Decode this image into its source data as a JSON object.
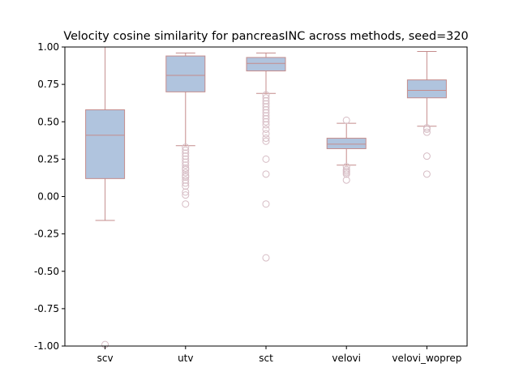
{
  "chart_data": {
    "type": "box",
    "title": "Velocity cosine similarity for pancreasINC across methods, seed=320",
    "xlabel": "",
    "ylabel": "",
    "ylim": [
      -1.0,
      1.0
    ],
    "yticks": [
      "-1.00",
      "-0.75",
      "-0.50",
      "-0.25",
      "0.00",
      "0.25",
      "0.50",
      "0.75",
      "1.00"
    ],
    "ytick_values": [
      -1.0,
      -0.75,
      -0.5,
      -0.25,
      0.0,
      0.25,
      0.5,
      0.75,
      1.0
    ],
    "categories": [
      "scv",
      "utv",
      "sct",
      "velovi",
      "velovi_woprep"
    ],
    "grid": false,
    "colors": {
      "box_fill": "#b0c4de",
      "box_edge": "#c48c8c",
      "outlier": "#d6bcc4"
    },
    "boxes": [
      {
        "name": "scv",
        "whisker_low": -0.16,
        "q1": 0.12,
        "median": 0.41,
        "q3": 0.58,
        "whisker_high": 1.0,
        "outliers": [
          -0.99
        ]
      },
      {
        "name": "utv",
        "whisker_low": 0.34,
        "q1": 0.7,
        "median": 0.81,
        "q3": 0.94,
        "whisker_high": 0.96,
        "outliers": [
          0.33,
          0.31,
          0.29,
          0.27,
          0.25,
          0.23,
          0.21,
          0.19,
          0.18,
          0.16,
          0.14,
          0.13,
          0.11,
          0.09,
          0.07,
          0.03,
          0.01,
          -0.05
        ]
      },
      {
        "name": "sct",
        "whisker_low": 0.69,
        "q1": 0.84,
        "median": 0.89,
        "q3": 0.93,
        "whisker_high": 0.96,
        "outliers": [
          0.68,
          0.66,
          0.64,
          0.62,
          0.6,
          0.58,
          0.56,
          0.54,
          0.52,
          0.5,
          0.48,
          0.45,
          0.42,
          0.39,
          0.37,
          0.25,
          0.15,
          -0.05,
          -0.41
        ]
      },
      {
        "name": "velovi",
        "whisker_low": 0.21,
        "q1": 0.32,
        "median": 0.35,
        "q3": 0.39,
        "whisker_high": 0.49,
        "outliers": [
          0.51,
          0.2,
          0.18,
          0.17,
          0.16,
          0.15,
          0.11
        ]
      },
      {
        "name": "velovi_woprep",
        "whisker_low": 0.47,
        "q1": 0.66,
        "median": 0.71,
        "q3": 0.78,
        "whisker_high": 0.97,
        "outliers": [
          0.46,
          0.45,
          0.43,
          0.27,
          0.15
        ]
      }
    ]
  }
}
